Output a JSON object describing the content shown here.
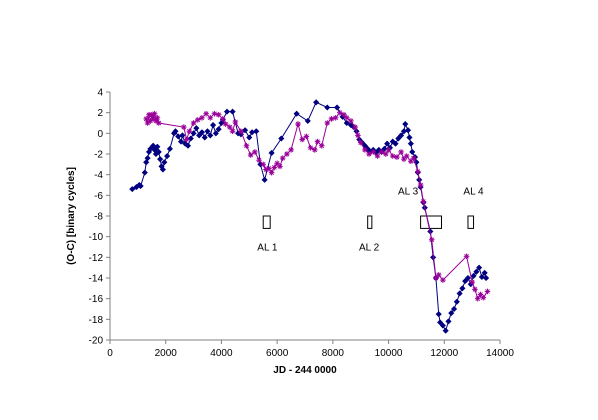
{
  "chart_data": {
    "type": "scatter",
    "title": "",
    "xlabel": "JD - 244 0000",
    "ylabel": "(O-C)  [binary cycles]",
    "xlim": [
      0,
      14000
    ],
    "ylim": [
      -20,
      4
    ],
    "x_ticks": [
      0,
      2000,
      4000,
      6000,
      8000,
      10000,
      12000,
      14000
    ],
    "y_ticks": [
      4,
      2,
      0,
      -2,
      -4,
      -6,
      -8,
      -10,
      -12,
      -14,
      -16,
      -18,
      -20
    ],
    "grid": false,
    "legend": "none",
    "colors": {
      "series_a": "#000080",
      "series_b": "#990099",
      "axis": "#808080"
    },
    "series": [
      {
        "marker": "diamond",
        "line": true,
        "points": [
          [
            800,
            -5.4
          ],
          [
            950,
            -5.2
          ],
          [
            1050,
            -5.0
          ],
          [
            1100,
            -5.1
          ],
          [
            1250,
            -3.8
          ],
          [
            1300,
            -2.8
          ],
          [
            1350,
            -2.4
          ],
          [
            1400,
            -1.8
          ],
          [
            1450,
            -1.5
          ],
          [
            1550,
            -1.2
          ],
          [
            1600,
            -1.6
          ],
          [
            1650,
            -2.0
          ],
          [
            1700,
            -1.3
          ],
          [
            1750,
            -1.8
          ],
          [
            1800,
            -2.5
          ],
          [
            1850,
            -3.2
          ],
          [
            1900,
            -3.5
          ],
          [
            1950,
            -2.8
          ],
          [
            2050,
            -2.2
          ],
          [
            2150,
            -1.5
          ],
          [
            2300,
            0.0
          ],
          [
            2350,
            0.2
          ],
          [
            2450,
            -0.3
          ],
          [
            2550,
            -0.8
          ],
          [
            2600,
            -0.2
          ],
          [
            2700,
            -1.0
          ],
          [
            2800,
            -1.2
          ],
          [
            2900,
            -0.5
          ],
          [
            3000,
            0.0
          ],
          [
            3100,
            0.5
          ],
          [
            3200,
            -0.2
          ],
          [
            3300,
            0.1
          ],
          [
            3400,
            -0.4
          ],
          [
            3500,
            0.2
          ],
          [
            3600,
            -0.2
          ],
          [
            3700,
            0.8
          ],
          [
            3800,
            0.0
          ],
          [
            3900,
            0.4
          ],
          [
            4000,
            1.0
          ],
          [
            4050,
            1.3
          ],
          [
            4200,
            2.1
          ],
          [
            4400,
            2.1
          ],
          [
            4600,
            0.0
          ],
          [
            4700,
            -0.1
          ],
          [
            4850,
            0.3
          ],
          [
            5000,
            -0.4
          ],
          [
            5100,
            0.1
          ],
          [
            5250,
            0.2
          ],
          [
            5400,
            -3.0
          ],
          [
            5550,
            -4.5
          ],
          [
            5800,
            -1.9
          ],
          [
            6150,
            -0.5
          ],
          [
            6700,
            1.9
          ],
          [
            7100,
            1.2
          ],
          [
            7400,
            3.0
          ],
          [
            7800,
            2.5
          ],
          [
            8150,
            2.5
          ],
          [
            8350,
            1.6
          ],
          [
            8500,
            1.0
          ],
          [
            8650,
            0.8
          ],
          [
            8750,
            0.6
          ],
          [
            8850,
            0.2
          ],
          [
            8950,
            -0.6
          ],
          [
            9050,
            -0.9
          ],
          [
            9150,
            -1.2
          ],
          [
            9250,
            -1.5
          ],
          [
            9350,
            -1.8
          ],
          [
            9450,
            -1.6
          ],
          [
            9550,
            -1.9
          ],
          [
            9650,
            -1.6
          ],
          [
            9750,
            -1.8
          ],
          [
            9850,
            -1.5
          ],
          [
            9950,
            -1.0
          ],
          [
            10050,
            -1.4
          ],
          [
            10150,
            -0.8
          ],
          [
            10250,
            -1.0
          ],
          [
            10350,
            -0.5
          ],
          [
            10450,
            -0.2
          ],
          [
            10550,
            0.2
          ],
          [
            10600,
            0.9
          ],
          [
            10700,
            0.3
          ],
          [
            10750,
            -0.4
          ],
          [
            10800,
            -1.0
          ],
          [
            10850,
            -1.8
          ],
          [
            10950,
            -2.3
          ],
          [
            11000,
            -2.8
          ],
          [
            11050,
            -3.8
          ],
          [
            11100,
            -4.5
          ],
          [
            11150,
            -5.2
          ],
          [
            11250,
            -6.7
          ],
          [
            11300,
            -7.2
          ],
          [
            11500,
            -9.5
          ],
          [
            11600,
            -12.0
          ],
          [
            11700,
            -14.0
          ],
          [
            11800,
            -17.5
          ],
          [
            11850,
            -18.3
          ],
          [
            11950,
            -18.6
          ],
          [
            12050,
            -19.1
          ],
          [
            12150,
            -18.2
          ],
          [
            12250,
            -17.4
          ],
          [
            12350,
            -17.0
          ],
          [
            12450,
            -16.3
          ],
          [
            12550,
            -15.5
          ],
          [
            12650,
            -15.0
          ],
          [
            12750,
            -14.3
          ],
          [
            12850,
            -14.0
          ],
          [
            12950,
            -14.6
          ],
          [
            13050,
            -13.8
          ],
          [
            13150,
            -13.4
          ],
          [
            13250,
            -13.0
          ],
          [
            13350,
            -13.9
          ],
          [
            13450,
            -13.5
          ],
          [
            13500,
            -14.0
          ]
        ]
      },
      {
        "marker": "asterisk",
        "line": true,
        "points": [
          [
            1300,
            1.4
          ],
          [
            1350,
            1.0
          ],
          [
            1400,
            1.8
          ],
          [
            1450,
            1.2
          ],
          [
            1500,
            1.8
          ],
          [
            1550,
            1.4
          ],
          [
            1600,
            1.9
          ],
          [
            1650,
            1.2
          ],
          [
            1700,
            1.5
          ],
          [
            1750,
            1.0
          ],
          [
            2650,
            0.6
          ],
          [
            2750,
            -0.6
          ],
          [
            2850,
            0.2
          ],
          [
            3000,
            1.0
          ],
          [
            3150,
            1.3
          ],
          [
            3300,
            1.5
          ],
          [
            3450,
            1.9
          ],
          [
            3600,
            1.5
          ],
          [
            3750,
            1.9
          ],
          [
            3900,
            1.8
          ],
          [
            4050,
            1.4
          ],
          [
            4150,
            0.9
          ],
          [
            4300,
            0.6
          ],
          [
            4400,
            0.2
          ],
          [
            4500,
            1.1
          ],
          [
            4700,
            0.2
          ],
          [
            4900,
            -1.2
          ],
          [
            5050,
            -2.1
          ],
          [
            5200,
            -1.8
          ],
          [
            5350,
            -2.6
          ],
          [
            5500,
            -3.0
          ],
          [
            5600,
            -3.5
          ],
          [
            5700,
            -3.4
          ],
          [
            5800,
            -3.8
          ],
          [
            5900,
            -3.3
          ],
          [
            6000,
            -2.9
          ],
          [
            6100,
            -3.2
          ],
          [
            6200,
            -2.4
          ],
          [
            6350,
            -2.0
          ],
          [
            6500,
            -1.6
          ],
          [
            6750,
            0.9
          ],
          [
            6900,
            -0.6
          ],
          [
            7050,
            -0.3
          ],
          [
            7200,
            -1.4
          ],
          [
            7350,
            -1.6
          ],
          [
            7450,
            -0.8
          ],
          [
            7600,
            -1.2
          ],
          [
            7800,
            1.0
          ],
          [
            7950,
            1.4
          ],
          [
            8100,
            1.5
          ],
          [
            8250,
            2.0
          ],
          [
            8400,
            1.8
          ],
          [
            8500,
            1.5
          ],
          [
            8650,
            1.2
          ],
          [
            8800,
            0.6
          ],
          [
            8900,
            -0.2
          ],
          [
            9000,
            -0.9
          ],
          [
            9150,
            -1.6
          ],
          [
            9300,
            -2.0
          ],
          [
            9450,
            -1.8
          ],
          [
            9600,
            -2.2
          ],
          [
            9750,
            -1.8
          ],
          [
            9900,
            -2.0
          ],
          [
            10000,
            -1.6
          ],
          [
            10150,
            -2.2
          ],
          [
            10300,
            -2.3
          ],
          [
            10450,
            -1.8
          ],
          [
            10550,
            -2.5
          ],
          [
            10650,
            -2.2
          ],
          [
            10800,
            -2.7
          ],
          [
            10900,
            -2.4
          ],
          [
            11050,
            -3.7
          ],
          [
            11150,
            -5.0
          ],
          [
            11250,
            -6.6
          ],
          [
            11550,
            -10.3
          ],
          [
            11700,
            -14.0
          ],
          [
            11800,
            -13.7
          ],
          [
            11950,
            -14.2
          ],
          [
            12800,
            -11.9
          ],
          [
            13000,
            -14.4
          ],
          [
            13100,
            -15.1
          ],
          [
            13200,
            -16.0
          ],
          [
            13300,
            -15.6
          ],
          [
            13400,
            -15.9
          ],
          [
            13550,
            -15.3
          ]
        ]
      }
    ],
    "annotations": [
      {
        "text": "AL 1",
        "x": 5650,
        "y": -11.0
      },
      {
        "text": "AL 2",
        "x": 9300,
        "y": -11.0
      },
      {
        "text": "AL 3",
        "x": 10700,
        "y": -5.6
      },
      {
        "text": "AL 4",
        "x": 13050,
        "y": -5.6
      }
    ],
    "boxes": [
      {
        "x0": 5500,
        "x1": 5750,
        "y0": -9.2,
        "y1": -8.0
      },
      {
        "x0": 9250,
        "x1": 9400,
        "y0": -9.2,
        "y1": -8.0
      },
      {
        "x0": 11150,
        "x1": 11900,
        "y0": -9.2,
        "y1": -8.0
      },
      {
        "x0": 12850,
        "x1": 13050,
        "y0": -9.2,
        "y1": -8.0
      }
    ]
  }
}
